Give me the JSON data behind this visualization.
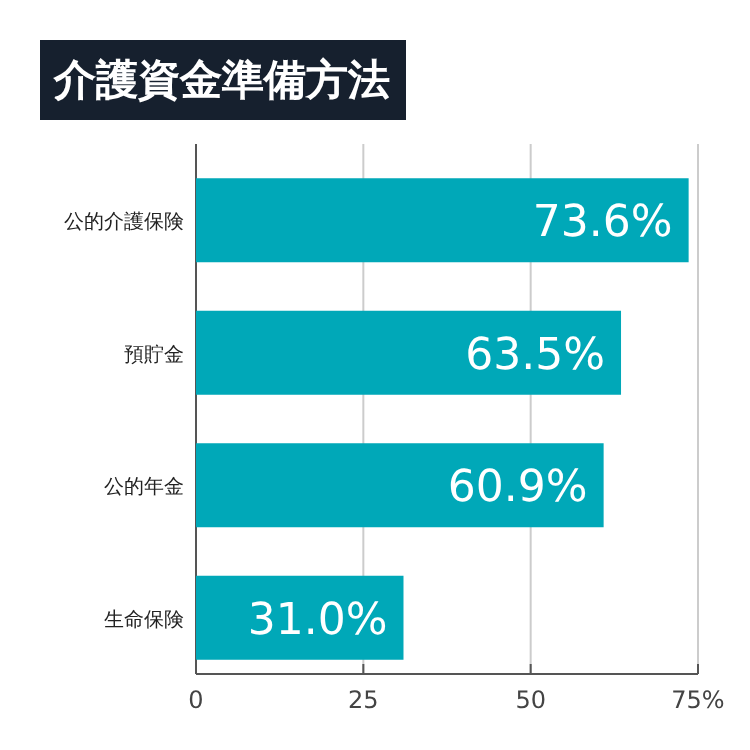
{
  "chart_data": {
    "type": "bar",
    "orientation": "horizontal",
    "title": "介護資金準備方法",
    "categories": [
      "公的介護保険",
      "預貯金",
      "公的年金",
      "生命保険"
    ],
    "values": [
      73.6,
      63.5,
      60.9,
      31.0
    ],
    "value_labels": [
      "73.6%",
      "63.5%",
      "60.9%",
      "31.0%"
    ],
    "color": "#00a8b8",
    "xlim": [
      0,
      75
    ],
    "xticks": [
      0,
      25,
      50,
      {
        "value": 75,
        "label": "75%"
      }
    ],
    "grid": "x"
  }
}
